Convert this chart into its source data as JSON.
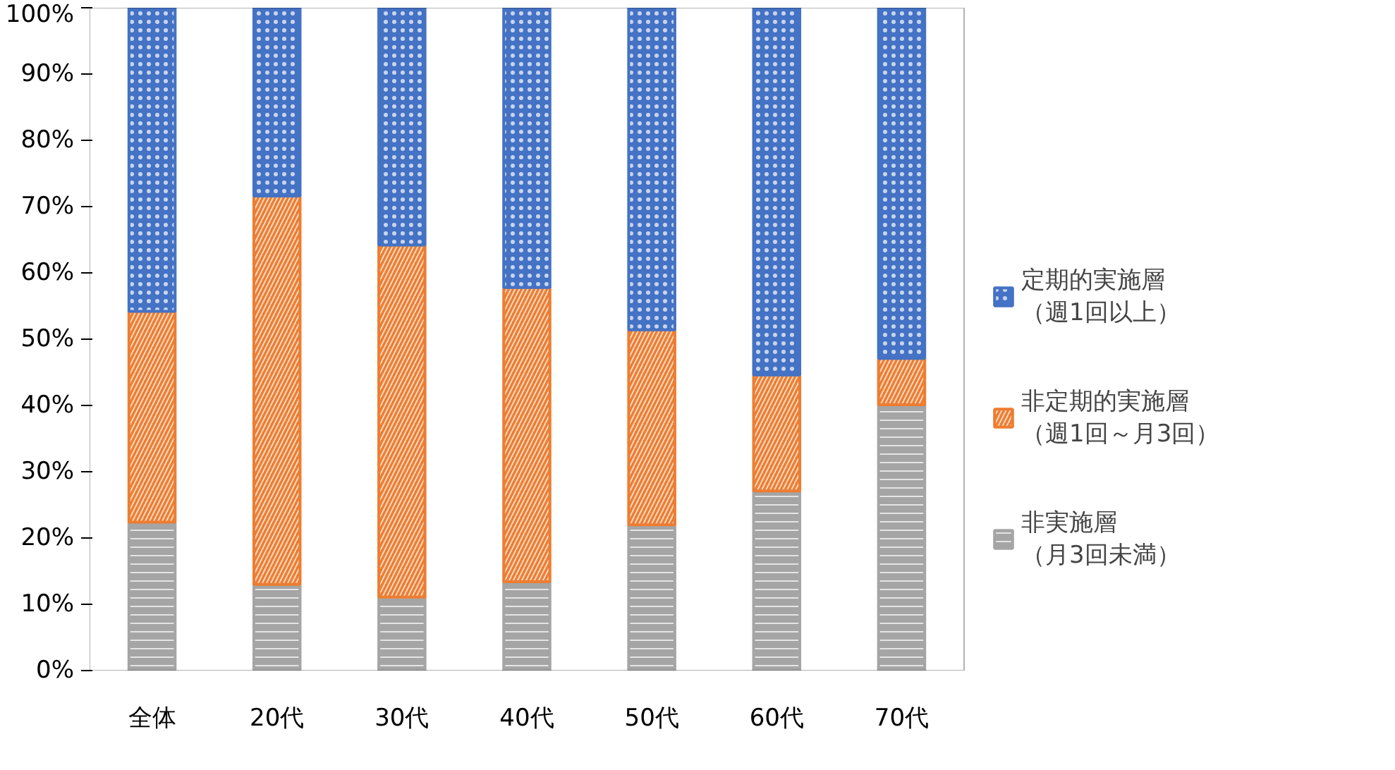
{
  "chart_data": {
    "type": "bar",
    "stacked": true,
    "categories": [
      "全体",
      "20代",
      "30代",
      "40代",
      "50代",
      "60代",
      "70代"
    ],
    "series": [
      {
        "name": "非実施層（月3回未満）",
        "color": "#a5a5a5",
        "values": [
          22.4,
          13,
          11.1,
          13.4,
          22,
          27.1,
          40.1
        ]
      },
      {
        "name": "非定期的実施層（週1回～月3回）",
        "color": "#ed7d31",
        "values": [
          31.8,
          58.6,
          53.1,
          44.4,
          29.4,
          17.5,
          7
        ]
      },
      {
        "name": "定期的実施層（週1回以上）",
        "color": "#4472c4",
        "values": [
          45.8,
          28.4,
          35.8,
          42.2,
          48.6,
          55.4,
          52.9
        ]
      }
    ],
    "ylim": [
      0,
      100
    ],
    "yticks": [
      {
        "value": 0,
        "label": "0%"
      },
      {
        "value": 10,
        "label": "10%"
      },
      {
        "value": 20,
        "label": "20%"
      },
      {
        "value": 30,
        "label": "30%"
      },
      {
        "value": 40,
        "label": "40%"
      },
      {
        "value": 50,
        "label": "50%"
      },
      {
        "value": 60,
        "label": "60%"
      },
      {
        "value": 70,
        "label": "70%"
      },
      {
        "value": 80,
        "label": "80%"
      },
      {
        "value": 90,
        "label": "90%"
      },
      {
        "value": 100,
        "label": "100%"
      }
    ],
    "grid": false,
    "legend": "right"
  }
}
